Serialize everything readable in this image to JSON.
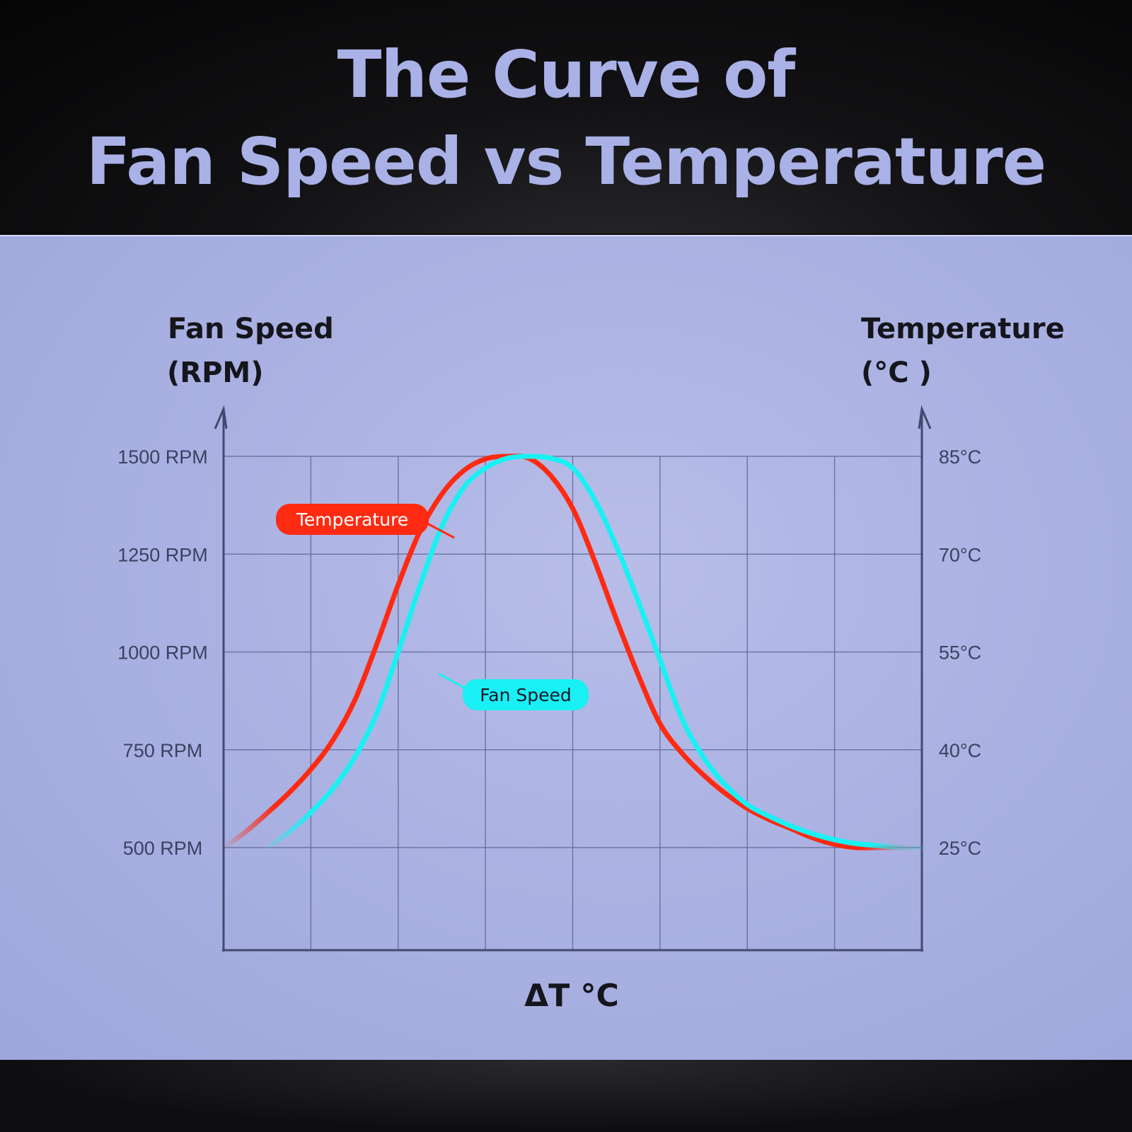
{
  "header": {
    "title_line1": "The Curve of",
    "title_line2": "Fan Speed vs Temperature"
  },
  "chart_data": {
    "type": "line",
    "title": "The Curve of Fan Speed vs Temperature",
    "xlabel": "ΔT °C",
    "left_axis": {
      "label_line1": "Fan Speed",
      "label_line2": "(RPM)",
      "ticks": [
        "500 RPM",
        "750 RPM",
        "1000 RPM",
        "1250 RPM",
        "1500 RPM"
      ],
      "tick_values": [
        500,
        750,
        1000,
        1250,
        1500
      ],
      "ylim": [
        500,
        1500
      ]
    },
    "right_axis": {
      "label_line1": "Temperature",
      "label_line2": "(°C )",
      "ticks": [
        "25°C",
        "40°C",
        "55°C",
        "70°C",
        "85°C"
      ],
      "tick_values": [
        25,
        40,
        55,
        70,
        85
      ],
      "ylim": [
        25,
        85
      ]
    },
    "x_divisions": 8,
    "grid": true,
    "series": [
      {
        "name": "Temperature",
        "color": "#ff2a12",
        "axis": "right",
        "x": [
          0.0,
          0.25,
          0.5,
          0.75,
          1.0,
          1.25,
          1.5,
          1.75,
          2.0,
          2.25,
          2.5,
          2.75,
          3.0,
          3.25,
          3.5,
          3.75,
          4.0,
          4.25,
          4.5,
          4.75,
          5.0,
          5.25,
          5.5,
          5.75,
          6.0,
          6.25,
          6.5,
          6.75,
          7.0,
          7.25,
          7.5,
          7.75,
          8.0
        ],
        "values": [
          25.0,
          27.4,
          30.3,
          33.4,
          37.0,
          41.4,
          47.5,
          56.0,
          65.3,
          73.5,
          79.2,
          82.8,
          84.6,
          85.0,
          84.7,
          82.0,
          77.0,
          69.0,
          60.0,
          51.5,
          44.0,
          39.5,
          36.1,
          33.3,
          31.0,
          29.3,
          27.9,
          26.5,
          25.5,
          25.0,
          25.0,
          25.0,
          25.0
        ]
      },
      {
        "name": "Fan Speed",
        "color": "#19f0f4",
        "axis": "left",
        "x": [
          0.5,
          0.75,
          1.0,
          1.25,
          1.5,
          1.75,
          2.0,
          2.25,
          2.5,
          2.75,
          3.0,
          3.25,
          3.5,
          3.75,
          4.0,
          4.25,
          4.5,
          4.75,
          5.0,
          5.25,
          5.5,
          5.75,
          6.0,
          6.25,
          6.5,
          6.75,
          7.0,
          7.25,
          7.5,
          7.75,
          8.0
        ],
        "values": [
          500,
          540,
          590,
          650,
          730,
          840,
          1000,
          1170,
          1320,
          1420,
          1470,
          1495,
          1500,
          1495,
          1470,
          1390,
          1270,
          1130,
          980,
          830,
          730,
          660,
          610,
          580,
          555,
          535,
          520,
          510,
          505,
          500,
          500
        ]
      }
    ]
  }
}
